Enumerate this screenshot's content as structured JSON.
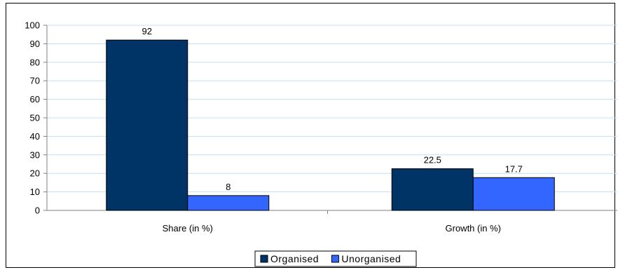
{
  "chart_data": {
    "type": "bar",
    "categories": [
      "Share (in %)",
      "Growth (in %)"
    ],
    "series": [
      {
        "name": "Organised",
        "values": [
          92,
          22.5
        ],
        "color": "#003366"
      },
      {
        "name": "Unorganised",
        "values": [
          8,
          17.7
        ],
        "color": "#3366FF"
      }
    ],
    "ylim": [
      0,
      100
    ],
    "yticks": [
      0,
      10,
      20,
      30,
      40,
      50,
      60,
      70,
      80,
      90,
      100
    ],
    "grid": true,
    "grid_color": "#C0E0F0",
    "legend_position": "bottom-center",
    "data_labels": true
  }
}
